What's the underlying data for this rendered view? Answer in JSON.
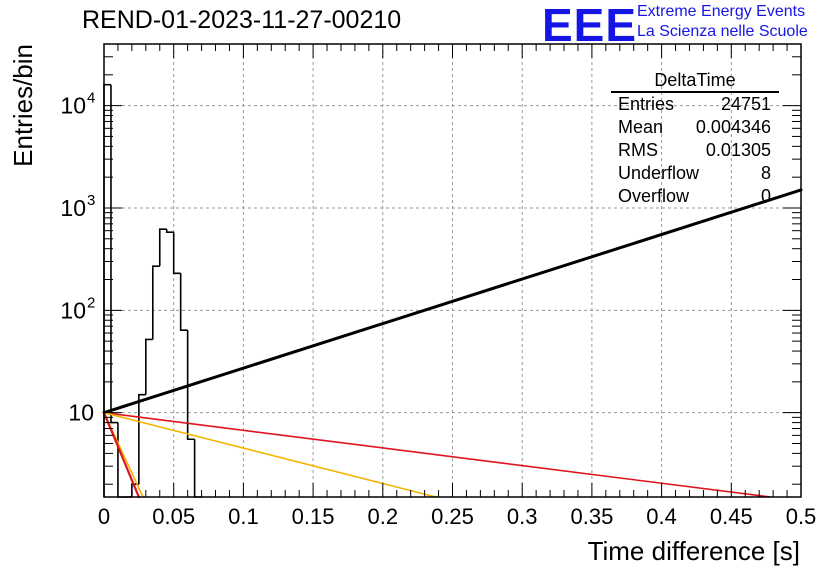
{
  "title": "REND-01-2023-11-27-00210",
  "logo": {
    "text": "EEE",
    "line1": "Extreme Energy Events",
    "line2": "La Scienza nelle Scuole",
    "color": "#1515e6"
  },
  "stats": {
    "title": "DeltaTime",
    "rows": [
      {
        "label": "Entries",
        "value": "24751"
      },
      {
        "label": "Mean",
        "value": "0.004346"
      },
      {
        "label": "RMS",
        "value": "0.01305"
      },
      {
        "label": "Underflow",
        "value": "8"
      },
      {
        "label": "Overflow",
        "value": "0"
      }
    ]
  },
  "chart_data": {
    "type": "line",
    "title": "REND-01-2023-11-27-00210",
    "xlabel": "Time difference [s]",
    "ylabel": "Entries/bin",
    "xlim": [
      0,
      0.5
    ],
    "ylim": [
      1.5,
      40000
    ],
    "ylog": true,
    "grid": true,
    "x_ticks": [
      0,
      0.05,
      0.1,
      0.15,
      0.2,
      0.25,
      0.3,
      0.35,
      0.4,
      0.45,
      0.5
    ],
    "x_tick_labels": [
      "0",
      "0.05",
      "0.1",
      "0.15",
      "0.2",
      "0.25",
      "0.3",
      "0.35",
      "0.4",
      "0.45",
      "0.5"
    ],
    "y_ticks": [
      10,
      100,
      1000,
      10000
    ],
    "y_tick_labels": [
      "10",
      "10",
      "10",
      "10"
    ],
    "y_tick_exponents": [
      "",
      "2",
      "3",
      "4"
    ],
    "histogram": {
      "color": "#000000",
      "bins": [
        {
          "x0": 0.0,
          "x1": 0.005,
          "y": 16000
        },
        {
          "x0": 0.005,
          "x1": 0.01,
          "y": 8
        },
        {
          "x0": 0.01,
          "x1": 0.015,
          "y": 1.5
        },
        {
          "x0": 0.015,
          "x1": 0.02,
          "y": 1.5
        },
        {
          "x0": 0.02,
          "x1": 0.025,
          "y": 2
        },
        {
          "x0": 0.025,
          "x1": 0.03,
          "y": 15
        },
        {
          "x0": 0.03,
          "x1": 0.035,
          "y": 52
        },
        {
          "x0": 0.035,
          "x1": 0.04,
          "y": 270
        },
        {
          "x0": 0.04,
          "x1": 0.045,
          "y": 620
        },
        {
          "x0": 0.045,
          "x1": 0.05,
          "y": 580
        },
        {
          "x0": 0.05,
          "x1": 0.055,
          "y": 230
        },
        {
          "x0": 0.055,
          "x1": 0.06,
          "y": 64
        },
        {
          "x0": 0.06,
          "x1": 0.065,
          "y": 5.5
        },
        {
          "x0": 0.065,
          "x1": 0.07,
          "y": 1.5
        }
      ]
    },
    "series": [
      {
        "color": "#000000",
        "width": 3,
        "x": [
          0,
          0.5
        ],
        "y": [
          10,
          1500
        ]
      },
      {
        "color": "#e0141e",
        "width": 1.6,
        "x": [
          0,
          0.478
        ],
        "y": [
          10,
          1.5
        ]
      },
      {
        "color": "#f5b400",
        "width": 1.6,
        "x": [
          0,
          0.238
        ],
        "y": [
          10,
          1.5
        ]
      },
      {
        "color": "#f5b400",
        "width": 1.6,
        "x": [
          0,
          0.028
        ],
        "y": [
          10,
          1.5
        ]
      },
      {
        "color": "#e0141e",
        "width": 2.2,
        "x": [
          0,
          0.025
        ],
        "y": [
          10,
          1.5
        ]
      }
    ]
  }
}
